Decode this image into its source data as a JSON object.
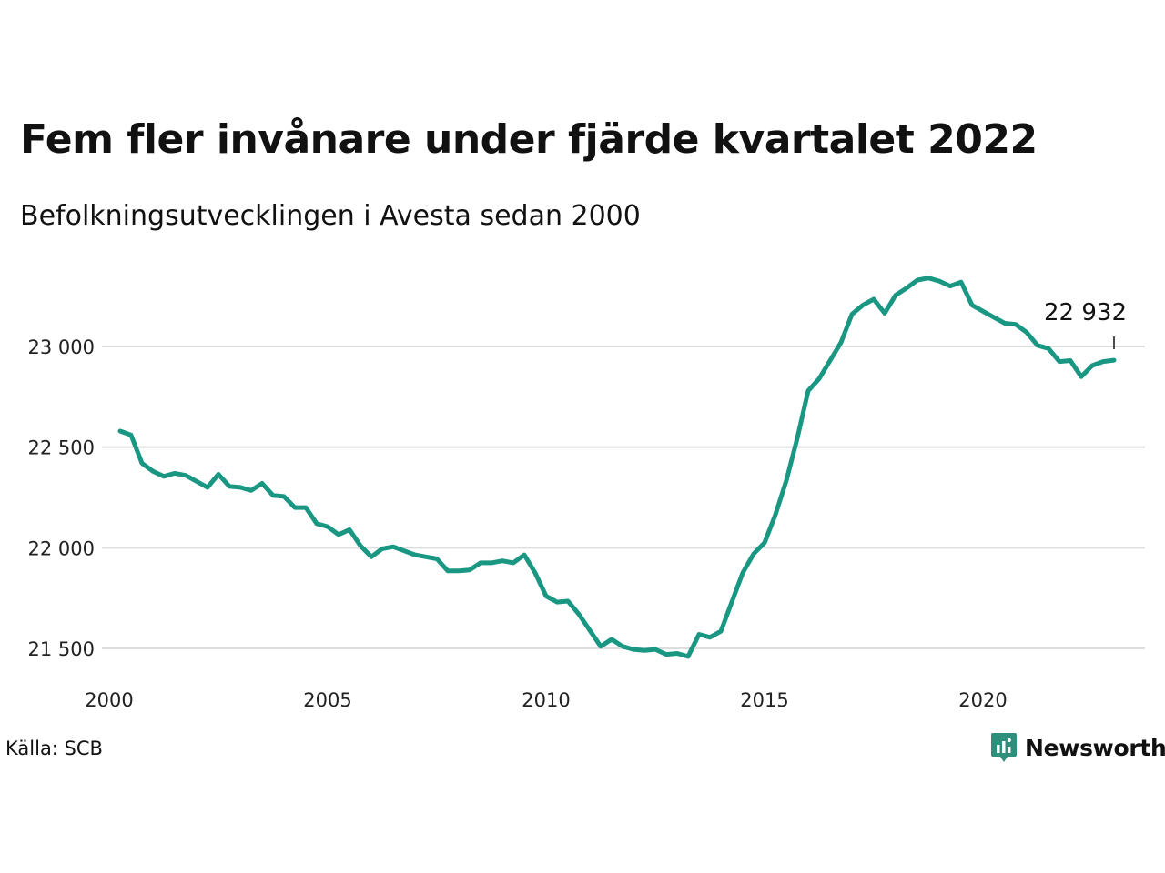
{
  "header": {
    "title": "Fem fler invånare under fjärde kvartalet 2022",
    "subtitle": "Befolkningsutvecklingen i Avesta sedan 2000"
  },
  "footer": {
    "source": "Källa: SCB",
    "brand": "Newsworthy"
  },
  "colors": {
    "line": "#1a9783",
    "brand": "#2f8f7a"
  },
  "chart_data": {
    "type": "line",
    "x_type": "quarterly",
    "x_start": "2000-Q1",
    "x_end": "2022-Q4",
    "ylim": [
      21430,
      23400
    ],
    "yticks": [
      21500,
      22000,
      22500,
      23000
    ],
    "ytick_labels": [
      "21 500",
      "22 000",
      "22 500",
      "23 000"
    ],
    "xticks": [
      2000,
      2005,
      2010,
      2015,
      2020
    ],
    "xtick_labels": [
      "2000",
      "2005",
      "2010",
      "2015",
      "2020"
    ],
    "grid": true,
    "series": [
      {
        "values": [
          22580,
          22560,
          22420,
          22380,
          22355,
          22370,
          22360,
          22330,
          22300,
          22365,
          22305,
          22300,
          22285,
          22320,
          22260,
          22255,
          22200,
          22200,
          22120,
          22105,
          22065,
          22090,
          22010,
          21955,
          21995,
          22005,
          21985,
          21965,
          21955,
          21945,
          21885,
          21885,
          21890,
          21925,
          21925,
          21935,
          21925,
          21965,
          21875,
          21760,
          21730,
          21735,
          21670,
          21590,
          21510,
          21545,
          21510,
          21495,
          21490,
          21495,
          21470,
          21475,
          21460,
          21570,
          21555,
          21585,
          21730,
          21875,
          21970,
          22025,
          22165,
          22335,
          22545,
          22780,
          22840,
          22930,
          23020,
          23160,
          23205,
          23235,
          23165,
          23255,
          23290,
          23330,
          23340,
          23325,
          23300,
          23320,
          23205,
          23175,
          23145,
          23115,
          23110,
          23070,
          23005,
          22990,
          22925,
          22930,
          22850,
          22905,
          22925,
          22932
        ]
      }
    ],
    "annotation": {
      "label": "22 932",
      "value": 22932,
      "x": "2022-Q4"
    }
  }
}
